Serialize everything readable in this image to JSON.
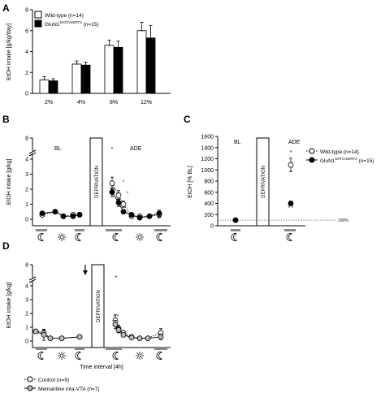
{
  "chart_data": [
    {
      "panel": "A",
      "type": "bar",
      "ylabel": "EtOH intake [g/kg/day]",
      "ylim": [
        0,
        8
      ],
      "yticks": [
        "0",
        "2",
        "4",
        "6",
        "8"
      ],
      "categories": [
        "2%",
        "4%",
        "8%",
        "12%"
      ],
      "series": [
        {
          "name": "Wild-type (n=14)",
          "values": [
            1.3,
            2.8,
            4.6,
            6.0
          ],
          "errors": [
            0.3,
            0.3,
            0.5,
            0.8
          ],
          "color": "#ffffff"
        },
        {
          "name": "GluN1",
          "name_sup": "DATCreERT2",
          "name_suffix": " (n=15)",
          "values": [
            1.2,
            2.7,
            4.4,
            5.3
          ],
          "errors": [
            0.2,
            0.3,
            0.6,
            1.2
          ],
          "color": "#000000"
        }
      ]
    },
    {
      "panel": "B",
      "type": "line",
      "ylabel": "EtOH intake [g/kg]",
      "ylim": [
        0,
        8
      ],
      "yticks": [
        "0",
        "1",
        "2",
        "3",
        "4",
        "8"
      ],
      "phase_labels": [
        "BL",
        "ADE"
      ],
      "box_label": "DEPRIVATION",
      "series": [
        {
          "name": "Wild-type",
          "fill": "#ffffff",
          "bl": [
            0.3,
            0.5,
            0.2,
            0.3,
            0.3
          ],
          "bl_err": [
            0.15,
            0.12,
            0.1,
            0.1,
            0.1
          ],
          "ade": [
            2.4,
            1.6,
            1.0,
            0.2,
            0.2,
            0.2,
            0.3
          ],
          "ade_err": [
            0.4,
            0.3,
            0.2,
            0.1,
            0.1,
            0.1,
            0.2
          ]
        },
        {
          "name": "GluN1",
          "fill": "#000000",
          "bl": [
            0.4,
            0.5,
            0.2,
            0.2,
            0.3
          ],
          "bl_err": [
            0.1,
            0.12,
            0.1,
            0.1,
            0.1
          ],
          "ade": [
            1.8,
            1.1,
            0.5,
            0.3,
            0.1,
            0.2,
            0.4
          ],
          "ade_err": [
            0.3,
            0.25,
            0.15,
            0.1,
            0.1,
            0.1,
            0.2
          ]
        }
      ],
      "annotations": [
        "*",
        "* *",
        "*",
        "*"
      ]
    },
    {
      "panel": "C",
      "type": "scatter",
      "ylabel": "EtOH [% BL]",
      "ylim": [
        0,
        1600
      ],
      "yticks": [
        "0",
        "200",
        "400",
        "600",
        "800",
        "1000",
        "1200",
        "1400",
        "1600"
      ],
      "phase_labels": [
        "BL",
        "ADE"
      ],
      "box_label": "DEPRIVATION",
      "reference_line": {
        "y": 100,
        "label": "100%"
      },
      "series": [
        {
          "name": "Wild-type (n=14)",
          "fill": "#ffffff",
          "bl": 100,
          "ade": 1090,
          "ade_err": 120
        },
        {
          "name": "GluN1",
          "name_sup": "DATCreERT2",
          "name_suffix": " (n=15)",
          "fill": "#000000",
          "bl": 100,
          "ade": 400,
          "ade_err": 40
        }
      ],
      "annotations": [
        "*",
        "* *"
      ]
    },
    {
      "panel": "D",
      "type": "line",
      "ylabel": "EtOH intake [g/kg]",
      "xlabel": "Time interval [4h]",
      "ylim": [
        0,
        8
      ],
      "yticks": [
        "0",
        "1",
        "2",
        "3",
        "4",
        "8"
      ],
      "box_label": "DEPRIVATION",
      "series": [
        {
          "name": "Control (n=9)",
          "fill": "#ffffff",
          "dashed": true,
          "bl": [
            0.7,
            0.6,
            0.2,
            0.2,
            0.3
          ],
          "bl_err": [
            0.15,
            0.2,
            0.1,
            0.1,
            0.05
          ],
          "ade": [
            1.5,
            0.9,
            0.6,
            0.3,
            0.2,
            0.2,
            0.6
          ],
          "ade_err": [
            0.4,
            0.25,
            0.15,
            0.1,
            0.1,
            0.1,
            0.3
          ]
        },
        {
          "name": "Memantine inta-VTA (n=7)",
          "fill": "#bbbbbb",
          "dashed": false,
          "bl": [
            0.7,
            0.45,
            0.2,
            0.2,
            0.3
          ],
          "bl_err": [
            0.1,
            0.4,
            0.1,
            0.1,
            0.05
          ],
          "ade": [
            1.2,
            0.8,
            0.45,
            0.25,
            0.2,
            0.2,
            0.3
          ],
          "ade_err": [
            0.3,
            0.2,
            0.1,
            0.1,
            0.1,
            0.1,
            0.2
          ]
        }
      ],
      "annotations": [
        "*",
        "* *"
      ]
    }
  ],
  "labels": {
    "a": "A",
    "b": "B",
    "c": "C",
    "d": "D"
  },
  "icons": [
    "moon-icon",
    "sun-icon",
    "down-arrow-icon"
  ]
}
